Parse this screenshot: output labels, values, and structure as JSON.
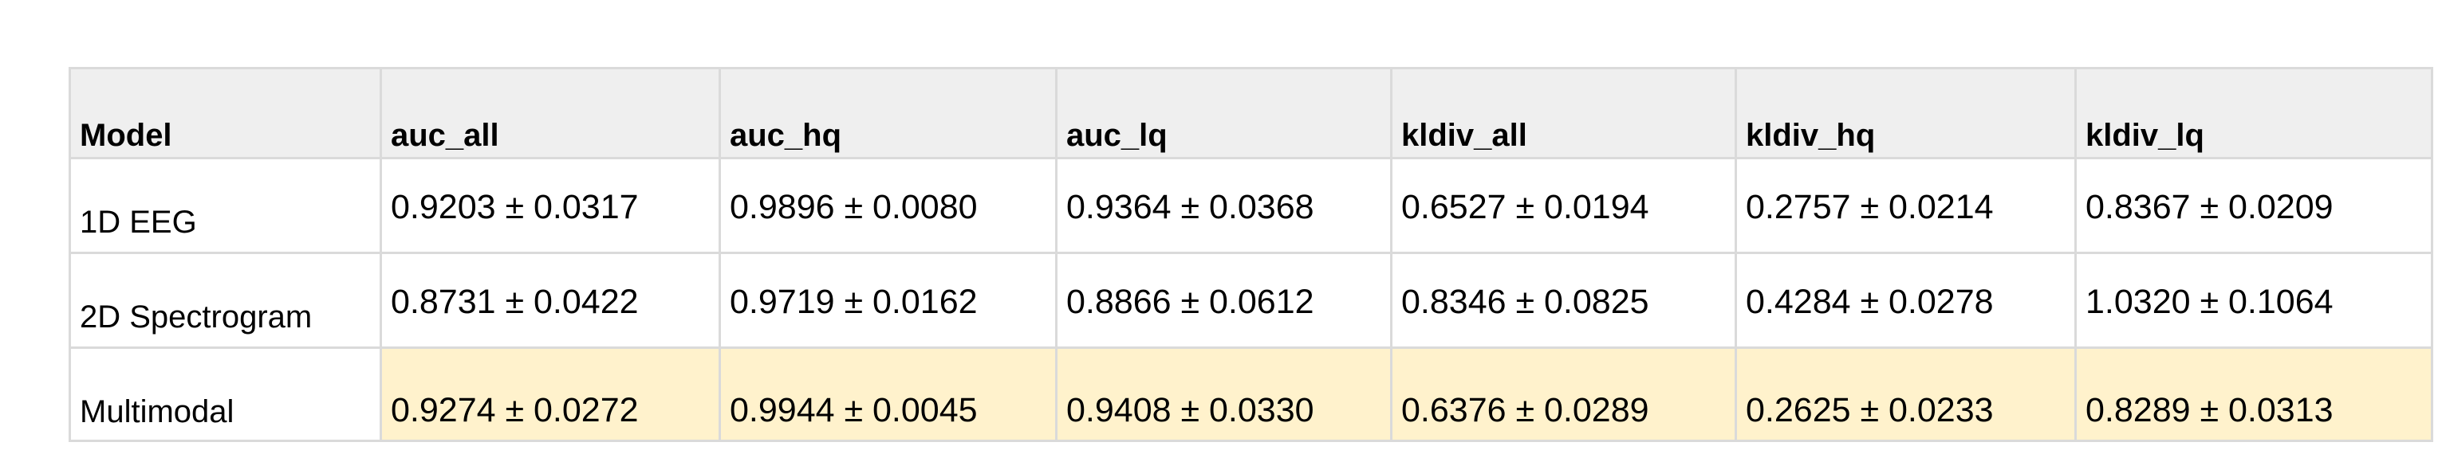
{
  "table": {
    "headers": [
      "Model",
      "auc_all",
      "auc_hq",
      "auc_lq",
      "kldiv_all",
      "kldiv_hq",
      "kldiv_lq"
    ],
    "rows": [
      {
        "model": "1D EEG",
        "values": [
          "0.9203 ± 0.0317",
          "0.9896 ± 0.0080",
          "0.9364 ± 0.0368",
          "0.6527 ± 0.0194",
          "0.2757 ± 0.0214",
          "0.8367 ± 0.0209"
        ],
        "highlighted": false
      },
      {
        "model": "2D Spectrogram",
        "values": [
          "0.8731 ± 0.0422",
          "0.9719 ± 0.0162",
          "0.8866 ± 0.0612",
          "0.8346 ± 0.0825",
          "0.4284 ± 0.0278",
          "1.0320 ± 0.1064"
        ],
        "highlighted": false
      },
      {
        "model": "Multimodal",
        "values": [
          "0.9274 ± 0.0272",
          "0.9944 ± 0.0045",
          "0.9408 ± 0.0330",
          "0.6376 ± 0.0289",
          "0.2625 ± 0.0233",
          "0.8289 ± 0.0313"
        ],
        "highlighted": true
      }
    ]
  },
  "colors": {
    "header_background": "#efefef",
    "highlight_background": "#fff2cc",
    "border": "#dadada"
  }
}
